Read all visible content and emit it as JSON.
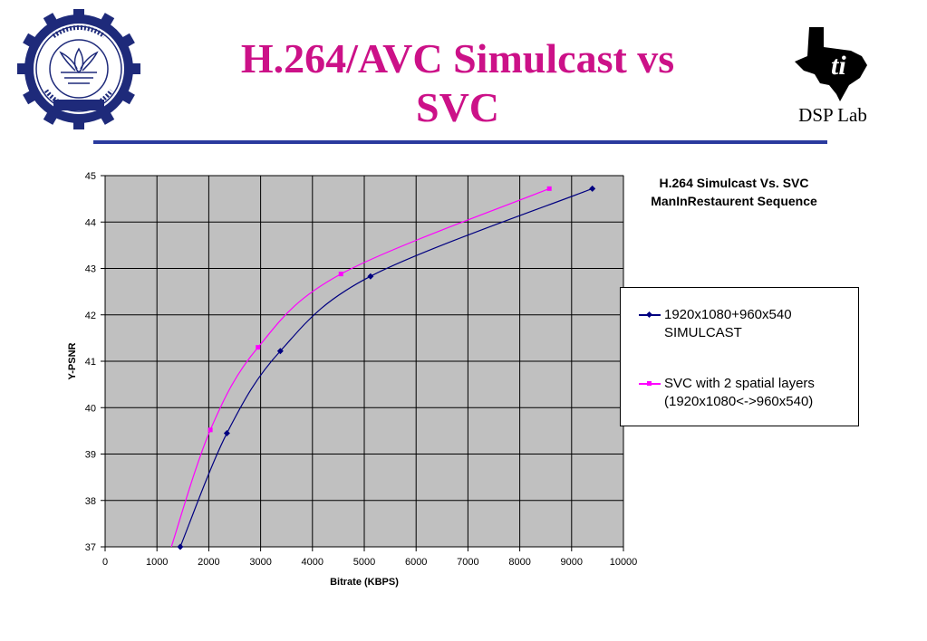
{
  "slide": {
    "title_line1": "H.264/AVC Simulcast vs",
    "title_line2": "SVC",
    "right_logo_text": "DSP Lab",
    "left_logo_text": "भारतीय प्रौद्योगिकी संस्थान मुंबई INDIAN INSTITUTE OF TECHNOLOGY BOMBAY",
    "left_logo_motto": "ज्ञानम् परमम् ध्येयम्"
  },
  "colors": {
    "title": "#cc1188",
    "rule": "#2a3a9e",
    "plot_bg": "#c0c0c0",
    "series1": "#000080",
    "series2": "#ff00ff"
  },
  "chart_data": {
    "type": "line",
    "title_line1": "H.264 Simulcast Vs. SVC",
    "title_line2": "ManInRestaurent Sequence",
    "xlabel": "Bitrate (KBPS)",
    "ylabel": "Y-PSNR",
    "xlim": [
      0,
      10000
    ],
    "ylim": [
      37,
      45
    ],
    "xticks": [
      "0",
      "1000",
      "2000",
      "3000",
      "4000",
      "5000",
      "6000",
      "7000",
      "8000",
      "9000",
      "10000"
    ],
    "yticks": [
      "37",
      "38",
      "39",
      "40",
      "41",
      "42",
      "43",
      "44",
      "45"
    ],
    "grid": true,
    "legend_position": "right",
    "series": [
      {
        "name_line1": "1920x1080+960x540",
        "name_line2": "SIMULCAST",
        "points": [
          [
            1450,
            37.0
          ],
          [
            2350,
            39.45
          ],
          [
            3380,
            41.22
          ],
          [
            5120,
            42.83
          ],
          [
            9400,
            44.72
          ]
        ]
      },
      {
        "name_line1": "SVC with 2 spatial layers",
        "name_line2": "(1920x1080<->960x540)",
        "points": [
          [
            1250,
            36.9
          ],
          [
            2030,
            39.52
          ],
          [
            2950,
            41.3
          ],
          [
            4550,
            42.88
          ],
          [
            8570,
            44.72
          ]
        ]
      }
    ]
  }
}
